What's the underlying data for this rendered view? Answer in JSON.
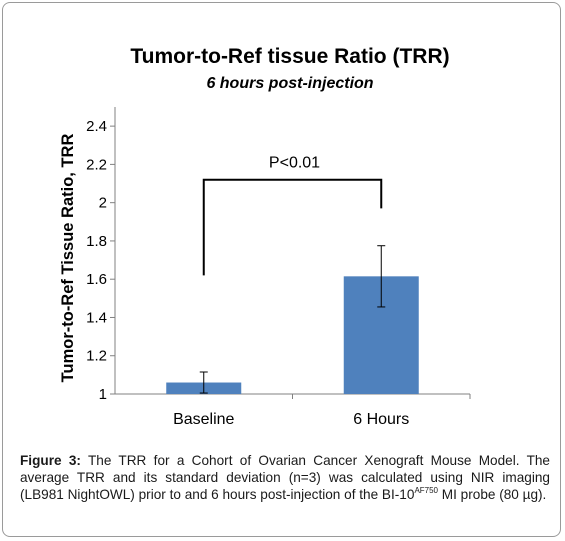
{
  "chart_data": {
    "type": "bar",
    "title": "Tumor-to-Ref tissue Ratio (TRR)",
    "subtitle": "6 hours post-injection",
    "ylabel": "Tumor-to-Ref Tissue Ratio, TRR",
    "xlabel": "",
    "categories": [
      "Baseline",
      "6 Hours"
    ],
    "values": [
      1.06,
      1.615
    ],
    "error": [
      0.055,
      0.16
    ],
    "ylim": [
      1,
      2.5
    ],
    "yticks": [
      "1",
      "1.2",
      "1.4",
      "1.6",
      "1.8",
      "2",
      "2.2",
      "2.4"
    ],
    "ytick_values": [
      1,
      1.2,
      1.4,
      1.6,
      1.8,
      2,
      2.2,
      2.4
    ],
    "bar_color": "#4f81bd",
    "annotation": {
      "text": "P<0.01",
      "bracket_level": 2.12,
      "left_drop_to": 1.62,
      "right_drop_to": 1.97
    },
    "grid": false,
    "legend": "none"
  },
  "caption": {
    "label": "Figure 3:",
    "text_part1": " The TRR for a Cohort of Ovarian Cancer Xenograft Mouse Model. The average TRR and its standard deviation (n=3) was calculated using NIR imaging (LB981 NightOWL) prior to and 6 hours post-injection of the BI-10",
    "superscript": "AF750",
    "text_part2": " MI probe (80 µg)."
  }
}
